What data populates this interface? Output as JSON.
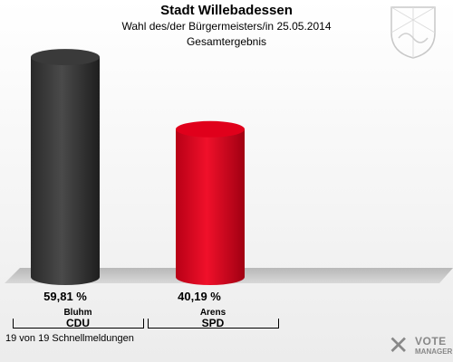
{
  "title": "Stadt Willebadessen",
  "subtitle": "Wahl des/der Bürgermeisters/in  25.05.2014",
  "subtitle2": "Gesamtergebnis",
  "footer": "19 von 19 Schnellmeldungen",
  "logo": {
    "line1": "VOTE",
    "line2": "MANAGER",
    "mark": "✕"
  },
  "chart_data": {
    "type": "bar",
    "title": "Stadt Willebadessen",
    "categories": [
      "CDU",
      "SPD"
    ],
    "candidates": [
      "Bluhm",
      "Arens"
    ],
    "values": [
      59.81,
      40.19
    ],
    "value_labels": [
      "59,81 %",
      "40,19 %"
    ],
    "colors": [
      "#3a3a3a",
      "#e0001b"
    ],
    "ylim": [
      0,
      65
    ],
    "grid": false,
    "legend": "none"
  }
}
